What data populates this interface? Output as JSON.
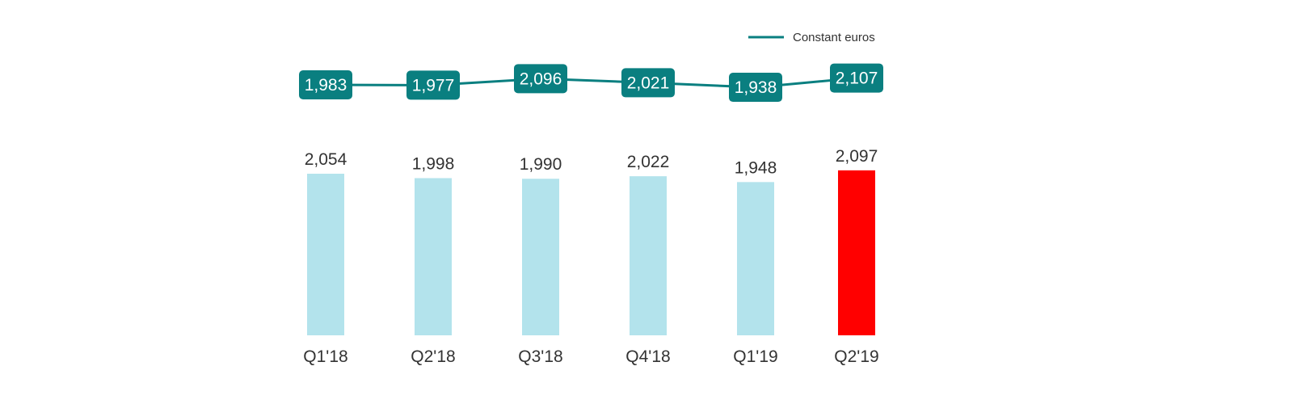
{
  "chart_data": {
    "type": "bar",
    "categories": [
      "Q1'18",
      "Q2'18",
      "Q3'18",
      "Q4'18",
      "Q1'19",
      "Q2'19"
    ],
    "series": [
      {
        "type": "bar",
        "values": [
          2054,
          1998,
          1990,
          2022,
          1948,
          2097
        ],
        "value_labels": [
          "2,054",
          "1,998",
          "1,990",
          "2,022",
          "1,948",
          "2,097"
        ],
        "colors": [
          "#b3e3ec",
          "#b3e3ec",
          "#b3e3ec",
          "#b3e3ec",
          "#b3e3ec",
          "#ff0000"
        ]
      },
      {
        "type": "line",
        "name": "Constant euros",
        "values": [
          1983,
          1977,
          2096,
          2021,
          1938,
          2107
        ],
        "value_labels": [
          "1,983",
          "1,977",
          "2,096",
          "2,021",
          "1,938",
          "2,107"
        ],
        "color": "#0a7f80"
      }
    ],
    "title": "",
    "xlabel": "",
    "ylabel": "",
    "legend": {
      "position": "top-right",
      "entries": [
        "Constant euros"
      ]
    },
    "grid": false,
    "axes_visible": false
  }
}
